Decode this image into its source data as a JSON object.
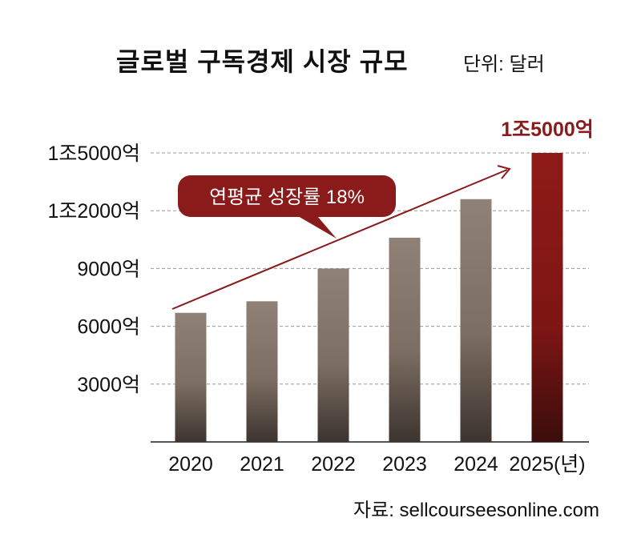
{
  "title": "글로벌 구독경제 시장 규모",
  "unit_label": "단위: 달러",
  "source": "자료: sellcourseesonline.com",
  "colors": {
    "bar": "#8f8175",
    "bar_highlight": "#8b1a1a",
    "accent": "#8b1a1a",
    "grid": "#999999"
  },
  "chart_data": {
    "type": "bar",
    "categories": [
      "2020",
      "2021",
      "2022",
      "2023",
      "2024",
      "2025(년)"
    ],
    "values": [
      6700,
      7300,
      9000,
      10600,
      12600,
      15000
    ],
    "highlight_index": 5,
    "highlight_value_label": "1조5000억",
    "ylim": [
      0,
      15000
    ],
    "yticks": [
      3000,
      6000,
      9000,
      12000,
      15000
    ],
    "ytick_labels": [
      "3000억",
      "6000억",
      "9000억",
      "1조2000억",
      "1조5000억"
    ],
    "grid": true,
    "annotation": {
      "text": "연평균 성장률 18%",
      "trend_arrow": true
    }
  }
}
